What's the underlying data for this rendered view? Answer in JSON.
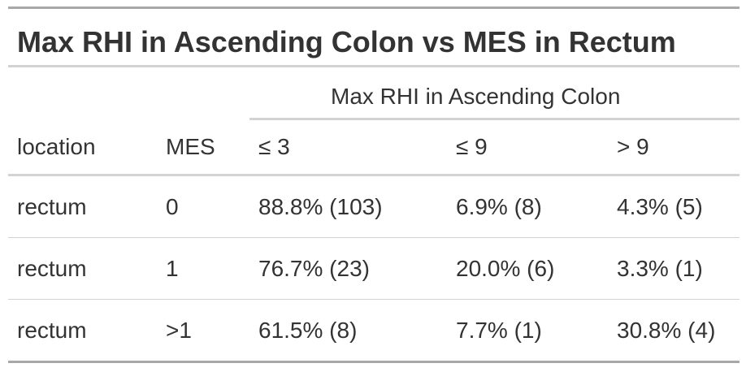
{
  "table": {
    "title": "Max RHI in Ascending Colon vs MES in Rectum",
    "spanner_label": "Max RHI in Ascending Colon",
    "columns": [
      "location",
      "MES",
      "≤ 3",
      "≤ 9",
      "> 9"
    ],
    "rows": [
      [
        "rectum",
        "0",
        "88.8% (103)",
        "6.9% (8)",
        "4.3% (5)"
      ],
      [
        "rectum",
        "1",
        "76.7% (23)",
        "20.0% (6)",
        "3.3% (1)"
      ],
      [
        "rectum",
        ">1",
        "61.5% (8)",
        "7.7% (1)",
        "30.8% (4)"
      ]
    ]
  }
}
